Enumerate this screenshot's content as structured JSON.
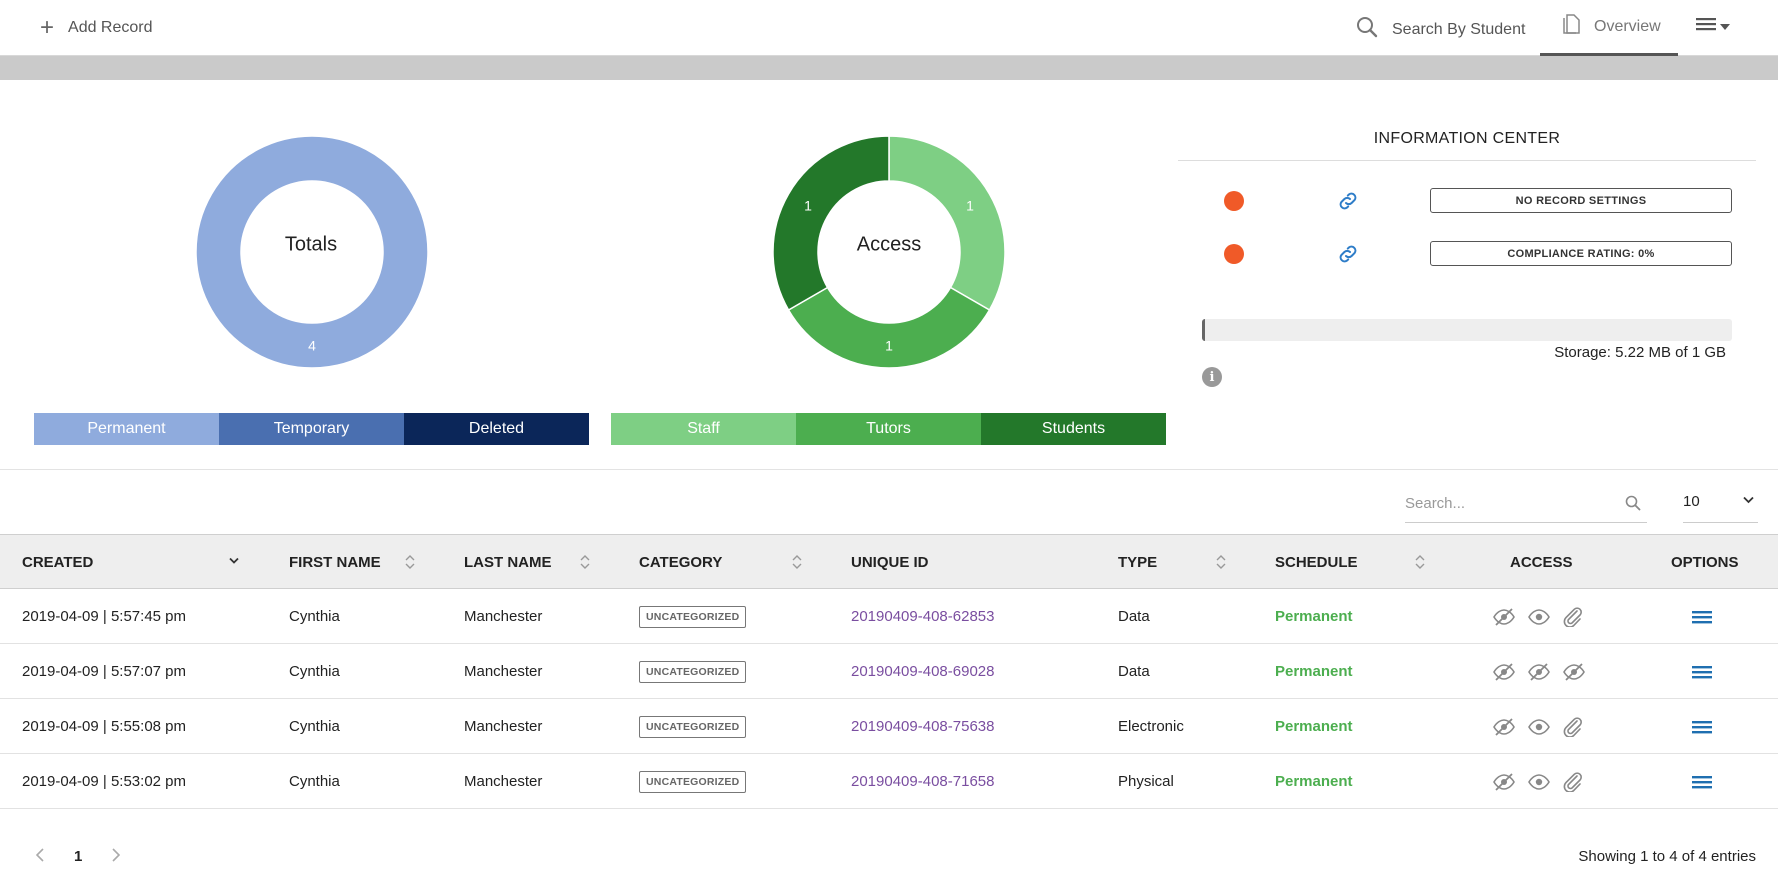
{
  "topbar": {
    "add_record": "Add Record",
    "search_student": "Search By Student",
    "overview": "Overview",
    "icons": [
      "plus-icon",
      "search-icon",
      "document-icon",
      "hamburger-menu-icon"
    ]
  },
  "totals_chart": {
    "center_label": "Totals",
    "slices": [
      {
        "name": "Permanent",
        "value": 4,
        "color": "#8fabdd"
      },
      {
        "name": "Temporary",
        "value": 0,
        "color": "#4a6fb0"
      },
      {
        "name": "Deleted",
        "value": 0,
        "color": "#0b2659"
      }
    ]
  },
  "access_chart": {
    "center_label": "Access",
    "slices": [
      {
        "name": "Staff",
        "value": 1,
        "color": "#7ecf84"
      },
      {
        "name": "Tutors",
        "value": 1,
        "color": "#4cae4f"
      },
      {
        "name": "Students",
        "value": 1,
        "color": "#23782a"
      }
    ]
  },
  "info_center": {
    "title": "INFORMATION CENTER",
    "rows": [
      {
        "status_color": "#f05a28",
        "label": "NO RECORD SETTINGS"
      },
      {
        "status_color": "#f05a28",
        "label": "COMPLIANCE RATING: 0%"
      }
    ],
    "storage_text": "Storage: 5.22 MB of 1 GB",
    "storage_fraction": 0.005
  },
  "table_controls": {
    "search_placeholder": "Search...",
    "page_size": "10"
  },
  "table": {
    "columns": [
      "CREATED",
      "FIRST NAME",
      "LAST NAME",
      "CATEGORY",
      "UNIQUE ID",
      "TYPE",
      "SCHEDULE",
      "ACCESS",
      "OPTIONS"
    ],
    "rows": [
      {
        "created": "2019-04-09 | 5:57:45 pm",
        "first_name": "Cynthia",
        "last_name": "Manchester",
        "category": "UNCATEGORIZED",
        "unique_id": "20190409-408-62853",
        "type": "Data",
        "schedule": "Permanent",
        "access": [
          "eye-slash-icon",
          "eye-icon",
          "paperclip-icon"
        ]
      },
      {
        "created": "2019-04-09 | 5:57:07 pm",
        "first_name": "Cynthia",
        "last_name": "Manchester",
        "category": "UNCATEGORIZED",
        "unique_id": "20190409-408-69028",
        "type": "Data",
        "schedule": "Permanent",
        "access": [
          "eye-slash-icon",
          "eye-slash-icon",
          "eye-slash-icon"
        ]
      },
      {
        "created": "2019-04-09 | 5:55:08 pm",
        "first_name": "Cynthia",
        "last_name": "Manchester",
        "category": "UNCATEGORIZED",
        "unique_id": "20190409-408-75638",
        "type": "Electronic",
        "schedule": "Permanent",
        "access": [
          "eye-slash-icon",
          "eye-icon",
          "paperclip-icon"
        ]
      },
      {
        "created": "2019-04-09 | 5:53:02 pm",
        "first_name": "Cynthia",
        "last_name": "Manchester",
        "category": "UNCATEGORIZED",
        "unique_id": "20190409-408-71658",
        "type": "Physical",
        "schedule": "Permanent",
        "access": [
          "eye-slash-icon",
          "eye-icon",
          "paperclip-icon"
        ]
      }
    ]
  },
  "pagination": {
    "current_page": "1",
    "entries_text": "Showing 1 to 4 of 4 entries"
  }
}
